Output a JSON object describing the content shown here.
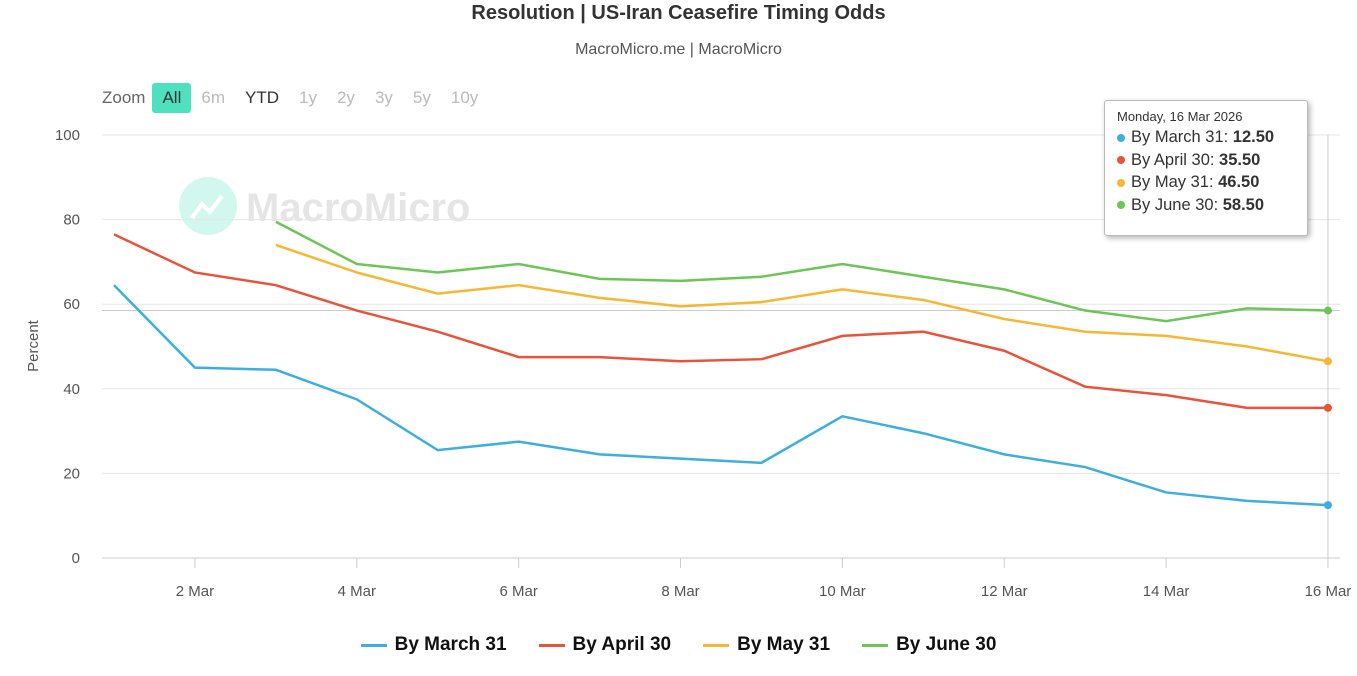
{
  "title": "Resolution | US-Iran Ceasefire Timing Odds",
  "subtitle": "MacroMicro.me | MacroMicro",
  "watermark": "MacroMicro",
  "zoom": {
    "label": "Zoom",
    "buttons": [
      "All",
      "6m",
      "YTD",
      "1y",
      "2y",
      "5y",
      "3y",
      "10y"
    ],
    "selected": "All"
  },
  "tooltip": {
    "date": "Monday, 16 Mar 2026",
    "rows": [
      {
        "name": "By March 31",
        "value": "12.50"
      },
      {
        "name": "By April 30",
        "value": "35.50"
      },
      {
        "name": "By May 31",
        "value": "46.50"
      },
      {
        "name": "By June 30",
        "value": "58.50"
      }
    ]
  },
  "chart_data": {
    "type": "line",
    "ylabel": "Percent",
    "ylim": [
      0,
      100
    ],
    "yticks": [
      0,
      20,
      40,
      60,
      80,
      100
    ],
    "xticks": [
      "2 Mar",
      "4 Mar",
      "6 Mar",
      "8 Mar",
      "10 Mar",
      "12 Mar",
      "14 Mar",
      "16 Mar"
    ],
    "x": [
      "1 Mar",
      "2 Mar",
      "3 Mar",
      "4 Mar",
      "5 Mar",
      "6 Mar",
      "7 Mar",
      "8 Mar",
      "9 Mar",
      "10 Mar",
      "11 Mar",
      "12 Mar",
      "13 Mar",
      "14 Mar",
      "15 Mar",
      "16 Mar"
    ],
    "grid": true,
    "legend": "bottom",
    "series": [
      {
        "name": "By March 31",
        "color": "#3daee0",
        "values": [
          64.5,
          45,
          44.5,
          37.5,
          25.5,
          27.5,
          24.5,
          23.5,
          22.5,
          33.5,
          29.5,
          24.5,
          21.5,
          15.5,
          13.5,
          12.5
        ]
      },
      {
        "name": "By April 30",
        "color": "#e8533a",
        "values": [
          76.5,
          67.5,
          64.5,
          58.5,
          53.5,
          47.5,
          47.5,
          46.5,
          47,
          52.5,
          53.5,
          49,
          40.5,
          38.5,
          35.5,
          35.5
        ]
      },
      {
        "name": "By May 31",
        "color": "#f7b733",
        "values": [
          null,
          null,
          74,
          67.5,
          62.5,
          64.5,
          61.5,
          59.5,
          60.5,
          63.5,
          61,
          56.5,
          53.5,
          52.5,
          50,
          46.5
        ]
      },
      {
        "name": "By June 30",
        "color": "#6cc655",
        "values": [
          null,
          null,
          79.5,
          69.5,
          67.5,
          69.5,
          66,
          65.5,
          66.5,
          69.5,
          66.5,
          63.5,
          58.5,
          56,
          59,
          58.5
        ]
      }
    ]
  }
}
